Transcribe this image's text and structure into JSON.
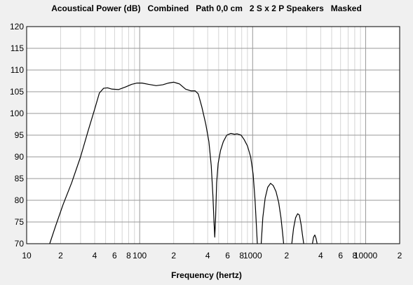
{
  "chart_data": {
    "type": "line",
    "title": "Acoustical Power (dB)   Combined   Path 0,0 cm   2 S x 2 P Speakers   Masked",
    "xlabel": "Frequency (hertz)",
    "ylabel": "",
    "x_scale": "log",
    "xlim": [
      10,
      20000
    ],
    "ylim": [
      70,
      120
    ],
    "grid": true,
    "y_ticks": [
      70,
      75,
      80,
      85,
      90,
      95,
      100,
      105,
      110,
      115,
      120
    ],
    "x_tick_labels": [
      {
        "x": 10,
        "label": "10"
      },
      {
        "x": 20,
        "label": "2"
      },
      {
        "x": 40,
        "label": "4"
      },
      {
        "x": 60,
        "label": "6"
      },
      {
        "x": 80,
        "label": "8"
      },
      {
        "x": 100,
        "label": "100"
      },
      {
        "x": 200,
        "label": "2"
      },
      {
        "x": 400,
        "label": "4"
      },
      {
        "x": 600,
        "label": "6"
      },
      {
        "x": 800,
        "label": "8"
      },
      {
        "x": 1000,
        "label": "1000"
      },
      {
        "x": 2000,
        "label": "2"
      },
      {
        "x": 4000,
        "label": "4"
      },
      {
        "x": 6000,
        "label": "6"
      },
      {
        "x": 8000,
        "label": "8"
      },
      {
        "x": 10000,
        "label": "10000"
      },
      {
        "x": 20000,
        "label": "2"
      }
    ],
    "series": [
      {
        "color": "#000000",
        "points": [
          [
            16,
            70
          ],
          [
            18,
            74
          ],
          [
            21,
            79
          ],
          [
            25,
            84
          ],
          [
            30,
            90
          ],
          [
            35,
            96
          ],
          [
            40,
            101
          ],
          [
            44,
            104.7
          ],
          [
            48,
            105.8
          ],
          [
            52,
            105.9
          ],
          [
            57,
            105.6
          ],
          [
            65,
            105.5
          ],
          [
            75,
            106.1
          ],
          [
            85,
            106.7
          ],
          [
            95,
            107.0
          ],
          [
            105,
            107.0
          ],
          [
            120,
            106.7
          ],
          [
            140,
            106.4
          ],
          [
            160,
            106.6
          ],
          [
            180,
            107.0
          ],
          [
            200,
            107.2
          ],
          [
            225,
            106.8
          ],
          [
            255,
            105.6
          ],
          [
            285,
            105.2
          ],
          [
            310,
            105.2
          ],
          [
            330,
            104.5
          ],
          [
            355,
            101.5
          ],
          [
            385,
            97.5
          ],
          [
            410,
            93.5
          ],
          [
            430,
            88.0
          ],
          [
            445,
            81.0
          ],
          [
            455,
            75.0
          ],
          [
            462,
            71.5
          ],
          [
            470,
            76.0
          ],
          [
            480,
            84.0
          ],
          [
            495,
            88.5
          ],
          [
            520,
            91.5
          ],
          [
            550,
            93.5
          ],
          [
            590,
            95.0
          ],
          [
            640,
            95.4
          ],
          [
            690,
            95.2
          ],
          [
            730,
            95.3
          ],
          [
            790,
            95.0
          ],
          [
            840,
            94.0
          ],
          [
            900,
            92.5
          ],
          [
            960,
            90.0
          ],
          [
            1010,
            86.0
          ],
          [
            1050,
            80.0
          ],
          [
            1080,
            74.0
          ],
          [
            1100,
            70.0
          ]
        ]
      },
      {
        "color": "#000000",
        "points": [
          [
            1190,
            70.0
          ],
          [
            1230,
            76.0
          ],
          [
            1290,
            80.5
          ],
          [
            1360,
            83.0
          ],
          [
            1440,
            83.9
          ],
          [
            1520,
            83.4
          ],
          [
            1610,
            82.0
          ],
          [
            1700,
            79.5
          ],
          [
            1780,
            76.0
          ],
          [
            1840,
            72.5
          ],
          [
            1880,
            70.0
          ]
        ]
      },
      {
        "color": "#000000",
        "points": [
          [
            2220,
            70.0
          ],
          [
            2300,
            73.5
          ],
          [
            2400,
            76.0
          ],
          [
            2500,
            76.9
          ],
          [
            2590,
            76.6
          ],
          [
            2680,
            74.5
          ],
          [
            2760,
            72.0
          ],
          [
            2830,
            70.0
          ]
        ]
      },
      {
        "color": "#000000",
        "points": [
          [
            3380,
            70.0
          ],
          [
            3460,
            71.5
          ],
          [
            3550,
            72.0
          ],
          [
            3640,
            71.2
          ],
          [
            3720,
            70.0
          ]
        ]
      }
    ]
  }
}
